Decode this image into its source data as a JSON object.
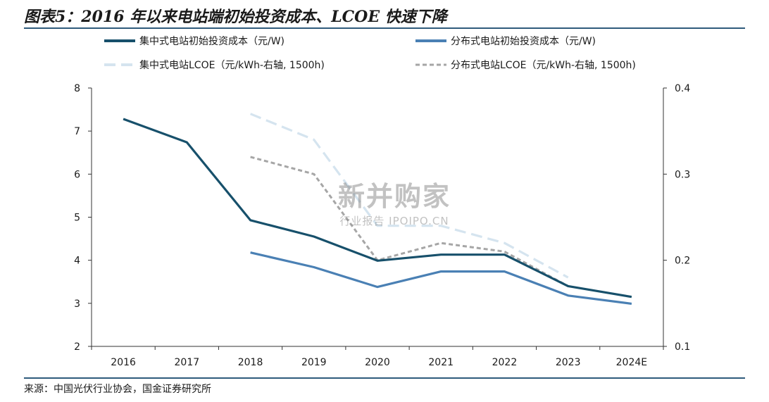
{
  "header": {
    "title": "图表5：2016 年以来电站端初始投资成本、LCOE 快速下降"
  },
  "footer": {
    "source": "来源：中国光伏行业协会，国金证券研究所"
  },
  "watermark": {
    "main": "新并购家",
    "sub": "行业报告 IPOIPO.CN"
  },
  "chart_data": {
    "type": "line",
    "categories": [
      "2016",
      "2017",
      "2018",
      "2019",
      "2020",
      "2021",
      "2022",
      "2023",
      "2024E"
    ],
    "y_left": {
      "min": 2,
      "max": 8,
      "ticks": [
        "2",
        "3",
        "4",
        "5",
        "6",
        "7",
        "8"
      ]
    },
    "y_right": {
      "min": 0.1,
      "max": 0.4,
      "ticks": [
        "0.1",
        "0.2",
        "0.3",
        "0.4"
      ]
    },
    "legend_placement": "top",
    "grid": false,
    "series": [
      {
        "name": "集中式电站初始投资成本（元/W)",
        "axis": "left",
        "style": "solid",
        "color": "#17506b",
        "values": [
          7.28,
          6.74,
          4.93,
          4.55,
          3.99,
          4.13,
          4.13,
          3.4,
          3.15
        ]
      },
      {
        "name": "分布式电站初始投资成本（元/W)",
        "axis": "left",
        "style": "solid",
        "color": "#4a80b4",
        "values": [
          null,
          null,
          4.18,
          3.84,
          3.38,
          3.74,
          3.74,
          3.18,
          2.99
        ]
      },
      {
        "name": "集中式电站LCOE（元/kWh-右轴, 1500h)",
        "axis": "right",
        "style": "dashed",
        "color": "#d5e4ef",
        "values": [
          null,
          null,
          0.37,
          0.34,
          0.24,
          0.24,
          0.22,
          0.18,
          null
        ]
      },
      {
        "name": "分布式电站LCOE（元/kWh-右轴, 1500h)",
        "axis": "right",
        "style": "dashed",
        "color": "#a6a6a6",
        "values": [
          null,
          null,
          0.32,
          0.3,
          0.2,
          0.22,
          0.21,
          0.17,
          null
        ]
      }
    ]
  }
}
